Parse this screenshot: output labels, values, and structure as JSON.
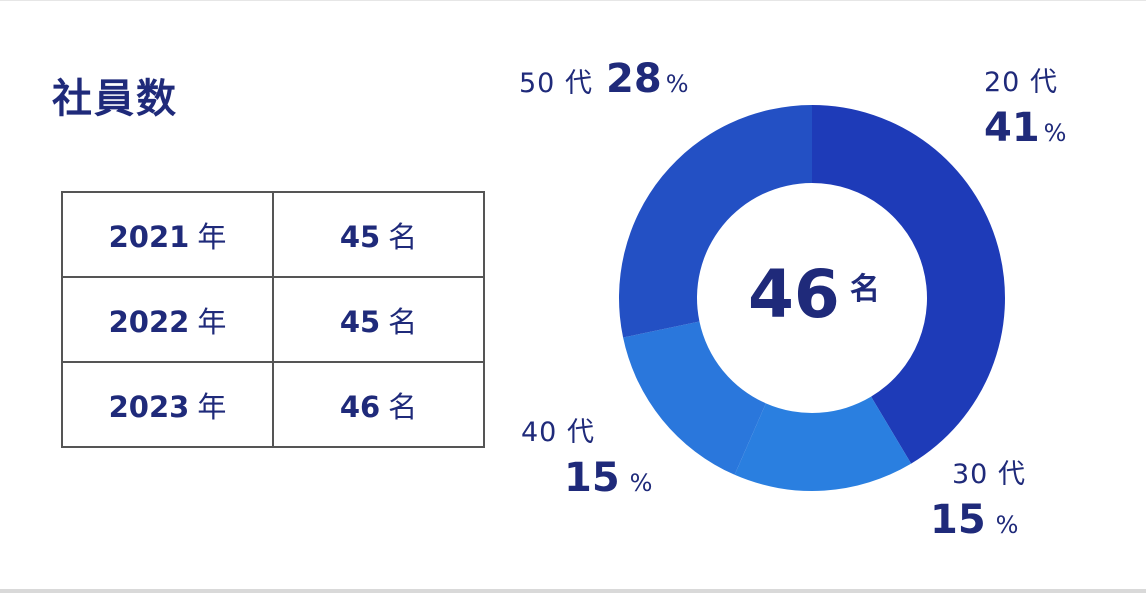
{
  "title": "社員数",
  "table": {
    "rows": [
      {
        "year": "2021",
        "year_unit": "年",
        "count": "45",
        "count_unit": "名"
      },
      {
        "year": "2022",
        "year_unit": "年",
        "count": "45",
        "count_unit": "名"
      },
      {
        "year": "2023",
        "year_unit": "年",
        "count": "46",
        "count_unit": "名"
      }
    ]
  },
  "center": {
    "value": "46",
    "unit": "名"
  },
  "labels": {
    "s20": {
      "age": "20 代",
      "pct": "41",
      "sign": "%"
    },
    "s30": {
      "age": "30 代",
      "pct": "15",
      "sign": "%"
    },
    "s40": {
      "age": "40 代",
      "pct": "15",
      "sign": "%"
    },
    "s50": {
      "age": "50 代",
      "pct": "28",
      "sign": "%"
    }
  },
  "colors": {
    "s20": "#1e3bb8",
    "s30": "#2a7fe0",
    "s40": "#2a77dc",
    "s50": "#2350c4"
  },
  "chart_data": {
    "type": "pie",
    "categories": [
      "20 代",
      "30 代",
      "40 代",
      "50 代"
    ],
    "values": [
      41,
      15,
      15,
      28
    ],
    "unit": "%",
    "total_label": "46 名"
  }
}
